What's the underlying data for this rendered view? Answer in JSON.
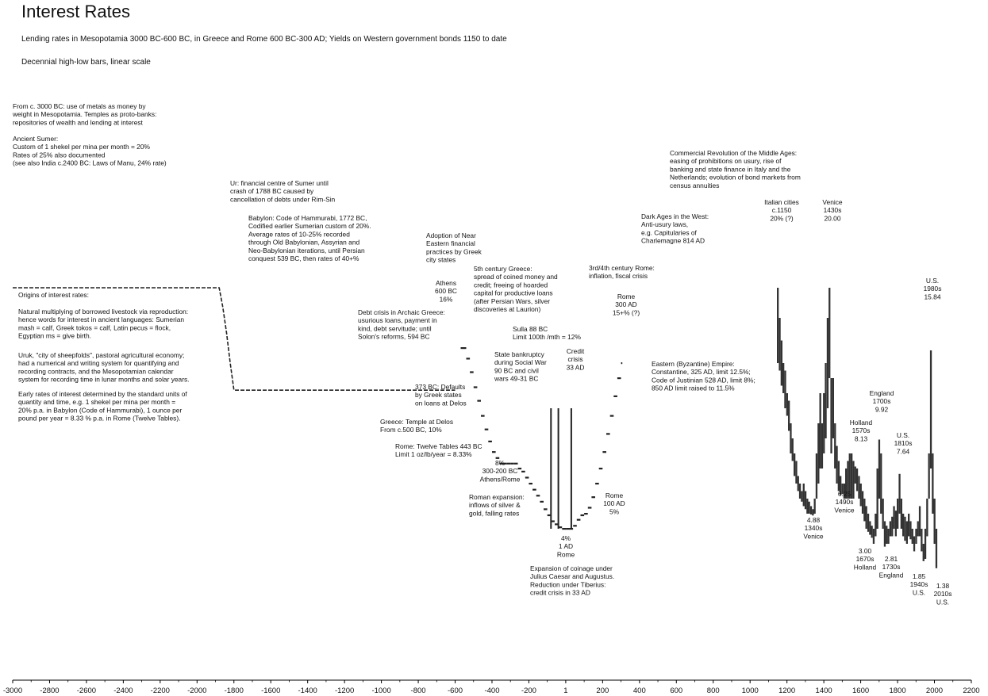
{
  "chart_data": {
    "type": "bar",
    "style": "decennial high-low bars",
    "title": "Interest Rates",
    "subtitle": "Lending rates in Mesopotamia 3000 BC-600 BC, in Greece and Rome 600 BC-300 AD; Yields on Western government bonds 1150 to date",
    "scale_note": "Decennial high-low bars, linear scale",
    "xlabel": "",
    "ylabel": "",
    "xlim": [
      -3000,
      2200
    ],
    "ylim": [
      0,
      22
    ],
    "x_ticks": [
      -3000,
      -2800,
      -2600,
      -2400,
      -2200,
      -2000,
      -1800,
      -1600,
      -1400,
      -1200,
      -1000,
      -800,
      -600,
      -400,
      -200,
      1,
      200,
      400,
      600,
      800,
      1000,
      1200,
      1400,
      1600,
      1800,
      2000,
      2200
    ],
    "x_tick_labels": [
      "-3000",
      "-2800",
      "-2600",
      "-2400",
      "-2200",
      "-2000",
      "-1800",
      "-1600",
      "-1400",
      "-1200",
      "-1000",
      "-800",
      "-600",
      "-400",
      "-200",
      "1",
      "200",
      "400",
      "600",
      "800",
      "1000",
      "1200",
      "1400",
      "1600",
      "1800",
      "2000",
      "2200"
    ],
    "series": [
      {
        "name": "Mesopotamia rate (dashed)",
        "style": "dashed",
        "points": [
          [
            -3000,
            20
          ],
          [
            -1880,
            20
          ],
          [
            -1860,
            18.7
          ],
          [
            -1840,
            17
          ],
          [
            -1820,
            15
          ],
          [
            -1800,
            13.2
          ],
          [
            -1790,
            13.2
          ],
          [
            -600,
            13.2
          ]
        ]
      },
      {
        "name": "Greece and Rome lending rates",
        "style": "steps",
        "points": [
          [
            -570,
            16
          ],
          [
            -540,
            15.3
          ],
          [
            -520,
            14.4
          ],
          [
            -500,
            13.4
          ],
          [
            -480,
            12.5
          ],
          [
            -460,
            11.5
          ],
          [
            -440,
            10.6
          ],
          [
            -420,
            9.8
          ],
          [
            -400,
            9.1
          ],
          [
            -380,
            8.7
          ],
          [
            -360,
            8.33
          ],
          [
            -340,
            8.33
          ],
          [
            -320,
            8.33
          ],
          [
            -300,
            8.33
          ],
          [
            -280,
            8.33
          ],
          [
            -260,
            8.0
          ],
          [
            -240,
            7.8
          ],
          [
            -220,
            7.4
          ],
          [
            -200,
            7.0
          ],
          [
            -180,
            6.6
          ],
          [
            -160,
            6.2
          ],
          [
            -140,
            5.8
          ],
          [
            -120,
            5.3
          ],
          [
            -100,
            4.9
          ],
          [
            -80,
            4.5
          ],
          [
            -60,
            4.3
          ],
          [
            -40,
            4.1
          ],
          [
            -20,
            4.0
          ],
          [
            1,
            4.0
          ],
          [
            20,
            4.0
          ],
          [
            40,
            4.2
          ],
          [
            60,
            4.6
          ],
          [
            80,
            4.9
          ],
          [
            100,
            5.0
          ],
          [
            120,
            5.4
          ],
          [
            140,
            6.1
          ],
          [
            160,
            7.0
          ],
          [
            180,
            8.0
          ],
          [
            200,
            9.1
          ],
          [
            220,
            10.3
          ],
          [
            240,
            11.5
          ],
          [
            260,
            12.8
          ],
          [
            280,
            14.0
          ],
          [
            300,
            15.0
          ]
        ]
      },
      {
        "name": "Ancient credit-crisis spikes (high-low)",
        "style": "bars",
        "bars": [
          [
            -80,
            4.0,
            12.0
          ],
          [
            -40,
            4.0,
            12.0
          ],
          [
            30,
            4.0,
            12.0
          ]
        ]
      },
      {
        "name": "Western government bond yields",
        "style": "high-low bars",
        "bars": [
          [
            1150,
            15.0,
            20.0
          ],
          [
            1160,
            14.5,
            18.0
          ],
          [
            1170,
            13.5,
            16.5
          ],
          [
            1180,
            13.0,
            15.0
          ],
          [
            1190,
            12.0,
            14.5
          ],
          [
            1200,
            11.5,
            13.0
          ],
          [
            1210,
            10.5,
            12.5
          ],
          [
            1220,
            9.0,
            11.0
          ],
          [
            1230,
            8.5,
            10.0
          ],
          [
            1240,
            7.5,
            9.0
          ],
          [
            1250,
            7.0,
            8.5
          ],
          [
            1260,
            6.5,
            7.5
          ],
          [
            1270,
            6.0,
            7.0
          ],
          [
            1280,
            5.8,
            6.5
          ],
          [
            1290,
            5.5,
            7.0
          ],
          [
            1300,
            5.3,
            6.5
          ],
          [
            1310,
            5.0,
            6.0
          ],
          [
            1320,
            5.0,
            5.8
          ],
          [
            1330,
            4.95,
            5.5
          ],
          [
            1340,
            4.88,
            5.3
          ],
          [
            1350,
            5.0,
            6.0
          ],
          [
            1360,
            6.0,
            9.0
          ],
          [
            1370,
            7.0,
            11.0
          ],
          [
            1380,
            8.0,
            13.0
          ],
          [
            1390,
            8.0,
            11.0
          ],
          [
            1400,
            9.0,
            13.0
          ],
          [
            1410,
            10.0,
            15.0
          ],
          [
            1420,
            12.0,
            18.0
          ],
          [
            1430,
            14.0,
            20.0
          ],
          [
            1440,
            9.0,
            14.0
          ],
          [
            1450,
            10.0,
            14.0
          ],
          [
            1460,
            8.0,
            11.0
          ],
          [
            1470,
            7.0,
            9.5
          ],
          [
            1480,
            6.5,
            8.5
          ],
          [
            1490,
            6.25,
            7.5
          ],
          [
            1500,
            6.3,
            7.0
          ],
          [
            1510,
            6.0,
            7.0
          ],
          [
            1520,
            6.0,
            8.0
          ],
          [
            1530,
            6.0,
            8.5
          ],
          [
            1540,
            6.0,
            9.0
          ],
          [
            1550,
            6.0,
            9.0
          ],
          [
            1560,
            6.0,
            8.5
          ],
          [
            1570,
            7.0,
            8.13
          ],
          [
            1580,
            6.5,
            8.0
          ],
          [
            1590,
            6.0,
            7.5
          ],
          [
            1600,
            5.5,
            7.0
          ],
          [
            1610,
            5.0,
            6.5
          ],
          [
            1620,
            4.5,
            6.0
          ],
          [
            1630,
            4.0,
            5.5
          ],
          [
            1640,
            3.8,
            5.0
          ],
          [
            1650,
            3.6,
            4.5
          ],
          [
            1660,
            3.4,
            4.2
          ],
          [
            1670,
            3.0,
            4.0
          ],
          [
            1680,
            3.5,
            5.0
          ],
          [
            1690,
            4.0,
            8.0
          ],
          [
            1700,
            6.0,
            9.92
          ],
          [
            1710,
            5.0,
            9.0
          ],
          [
            1720,
            4.0,
            6.0
          ],
          [
            1730,
            2.81,
            4.5
          ],
          [
            1740,
            3.0,
            4.2
          ],
          [
            1750,
            3.0,
            4.0
          ],
          [
            1760,
            3.5,
            4.5
          ],
          [
            1770,
            3.5,
            4.8
          ],
          [
            1780,
            4.0,
            5.5
          ],
          [
            1790,
            3.5,
            5.2
          ],
          [
            1800,
            4.0,
            6.0
          ],
          [
            1810,
            5.0,
            7.64
          ],
          [
            1820,
            4.0,
            6.0
          ],
          [
            1830,
            3.5,
            5.0
          ],
          [
            1840,
            3.2,
            4.8
          ],
          [
            1850,
            3.0,
            4.5
          ],
          [
            1860,
            3.5,
            5.0
          ],
          [
            1870,
            3.3,
            4.5
          ],
          [
            1880,
            3.0,
            4.0
          ],
          [
            1890,
            2.5,
            3.5
          ],
          [
            1900,
            3.0,
            4.0
          ],
          [
            1910,
            3.5,
            4.5
          ],
          [
            1920,
            3.5,
            5.5
          ],
          [
            1930,
            2.5,
            4.0
          ],
          [
            1940,
            1.85,
            3.0
          ],
          [
            1950,
            2.0,
            4.0
          ],
          [
            1960,
            3.5,
            6.0
          ],
          [
            1970,
            6.0,
            9.0
          ],
          [
            1980,
            8.0,
            15.84
          ],
          [
            1990,
            5.0,
            9.0
          ],
          [
            2000,
            3.0,
            6.0
          ],
          [
            2010,
            1.38,
            4.0
          ]
        ]
      }
    ],
    "point_labels": [
      {
        "x": -570,
        "value": 16,
        "lines": [
          "Athens",
          "600 BC",
          "16%"
        ]
      },
      {
        "x": 300,
        "value": 15,
        "lines": [
          "Rome",
          "300 AD",
          "15+% (?)"
        ]
      },
      {
        "x": 1150,
        "value": 20,
        "lines": [
          "Italian cities",
          "c.1150",
          "20% (?)"
        ]
      },
      {
        "x": 1430,
        "value": 20.0,
        "lines": [
          "Venice",
          "1430s",
          "20.00"
        ]
      },
      {
        "x": 1980,
        "value": 15.84,
        "lines": [
          "U.S.",
          "1980s",
          "15.84"
        ]
      },
      {
        "x": 1700,
        "value": 9.92,
        "lines": [
          "England",
          "1700s",
          "9.92"
        ]
      },
      {
        "x": 1570,
        "value": 8.13,
        "lines": [
          "Holland",
          "1570s",
          "8.13"
        ]
      },
      {
        "x": 1810,
        "value": 7.64,
        "lines": [
          "U.S.",
          "1810s",
          "7.64"
        ]
      },
      {
        "x": 1490,
        "value": 6.25,
        "lines": [
          "6.25",
          "1490s",
          "Venice"
        ]
      },
      {
        "x": 1340,
        "value": 4.88,
        "lines": [
          "4.88",
          "1340s",
          "Venice"
        ]
      },
      {
        "x": 1670,
        "value": 3.0,
        "lines": [
          "3.00",
          "1670s",
          "Holland"
        ]
      },
      {
        "x": 1730,
        "value": 2.81,
        "lines": [
          "2.81",
          "1730s",
          "England"
        ]
      },
      {
        "x": 1940,
        "value": 1.85,
        "lines": [
          "1.85",
          "1940s",
          "U.S."
        ]
      },
      {
        "x": 2010,
        "value": 1.38,
        "lines": [
          "1.38",
          "2010s",
          "U.S."
        ]
      },
      {
        "x": 1,
        "value": 4.0,
        "lines": [
          "4%",
          "1 AD",
          "Rome"
        ]
      },
      {
        "x": 100,
        "value": 5.0,
        "lines": [
          "Rome",
          "100 AD",
          "5%"
        ]
      },
      {
        "x": -300,
        "value": 8.33,
        "lines": [
          "8%",
          "300-200 BC",
          "Athens/Rome"
        ]
      }
    ],
    "annotations": [
      {
        "id": "origin-of-money",
        "lines": [
          "From c. 3000 BC: use of metals as money by",
          "weight in Mesopotamia. Temples as proto-banks:",
          "repositories of wealth and lending at interest"
        ]
      },
      {
        "id": "ancient-sumer",
        "lines": [
          "Ancient Sumer:",
          "Custom of 1 shekel per mina per month = 20%",
          "Rates of 25% also documented",
          "(see also India c.2400 BC: Laws of Manu, 24% rate)"
        ]
      },
      {
        "id": "ur",
        "lines": [
          "Ur: financial centre of Sumer until",
          "crash of 1788 BC caused by",
          "cancellation of debts under Rim-Sin"
        ]
      },
      {
        "id": "babylon",
        "lines": [
          "Babylon: Code of Hammurabi, 1772 BC,",
          "Codified earlier Sumerian custom of 20%.",
          "Average rates of 10-25% recorded",
          "through Old Babylonian, Assyrian and",
          "Neo-Babylonian iterations, until Persian",
          "conquest 539 BC, then rates of 40+%"
        ]
      },
      {
        "id": "adoption",
        "lines": [
          "Adoption of Near",
          "Eastern financial",
          "practices by Greek",
          "city states"
        ]
      },
      {
        "id": "origins-title",
        "lines": [
          "Origins of interest rates:"
        ]
      },
      {
        "id": "natural-multiplying",
        "lines": [
          "Natural multiplying of borrowed livestock via reproduction:",
          "hence words for interest in ancient languages: Sumerian",
          "mash = calf, Greek tokos = calf, Latin pecus = flock,",
          "Egyptian ms = give birth."
        ]
      },
      {
        "id": "uruk",
        "lines": [
          "Uruk, \"city of sheepfolds\", pastoral agricultural economy;",
          "had a numerical and writing system for quantifying and",
          "recording contracts, and the Mesopotamian calendar",
          "system for recording time in lunar months and solar years."
        ]
      },
      {
        "id": "early-rates",
        "lines": [
          "Early rates of interest determined by the standard units of",
          "quantity and time, e.g. 1 shekel per mina per month =",
          "20% p.a. in Babylon (Code of Hammurabi), 1 ounce per",
          "pound per year = 8.33 % p.a. in Rome (Twelve Tables)."
        ]
      },
      {
        "id": "greece-5th",
        "lines": [
          "5th century Greece:",
          "spread of coined money and",
          "credit;  freeing of hoarded",
          "capital for productive loans",
          "(after Persian Wars, silver",
          "discoveries at Laurion)"
        ]
      },
      {
        "id": "debt-crisis",
        "lines": [
          "Debt crisis in Archaic Greece:",
          "usurious loans, payment in",
          "kind, debt servitude; until",
          "Solon's reforms, 594 BC"
        ]
      },
      {
        "id": "sulla",
        "lines": [
          "Sulla 88 BC",
          "Limit 100th /mth = 12%"
        ]
      },
      {
        "id": "state-bankruptcy",
        "lines": [
          "State bankruptcy",
          "during Social War",
          "90 BC and civil",
          "wars 49-31 BC"
        ]
      },
      {
        "id": "credit-crisis",
        "lines": [
          "Credit",
          "crisis",
          "33 AD"
        ]
      },
      {
        "id": "defaults-373",
        "lines": [
          "373 BC: Defaults",
          "by Greek states",
          "on loans at Delos"
        ]
      },
      {
        "id": "delos",
        "lines": [
          "Greece: Temple at Delos",
          "From c.500 BC, 10%"
        ]
      },
      {
        "id": "twelve-tables",
        "lines": [
          "Rome: Twelve Tables 443 BC",
          "Limit 1 oz/lb/year = 8.33%"
        ]
      },
      {
        "id": "roman-expansion",
        "lines": [
          "Roman expansion:",
          "inflows of silver &",
          "gold, falling rates"
        ]
      },
      {
        "id": "expansion-coinage",
        "lines": [
          "Expansion of coinage under",
          "Julius Caesar and Augustus.",
          "Reduction under Tiberius:",
          "credit crisis in 33 AD"
        ]
      },
      {
        "id": "rome-3rd-4th",
        "lines": [
          "3rd/4th century Rome:",
          "inflation, fiscal crisis"
        ]
      },
      {
        "id": "dark-ages",
        "lines": [
          "Dark Ages in the West:",
          "Anti-usury laws,",
          "e.g. Capitularies of",
          "Charlemagne 814 AD"
        ]
      },
      {
        "id": "commercial-revolution",
        "lines": [
          "Commercial Revolution of the Middle Ages:",
          "easing of prohibitions on usury, rise of",
          "banking and state finance in Italy and the",
          "Netherlands; evolution of bond markets from",
          "census annuities"
        ]
      },
      {
        "id": "byzantine",
        "lines": [
          "Eastern (Byzantine) Empire:",
          "Constantine, 325 AD, limit 12.5%;",
          "Code of Justinian 528 AD, limit 8%;",
          "850 AD limit raised to 11.5%"
        ]
      }
    ]
  }
}
